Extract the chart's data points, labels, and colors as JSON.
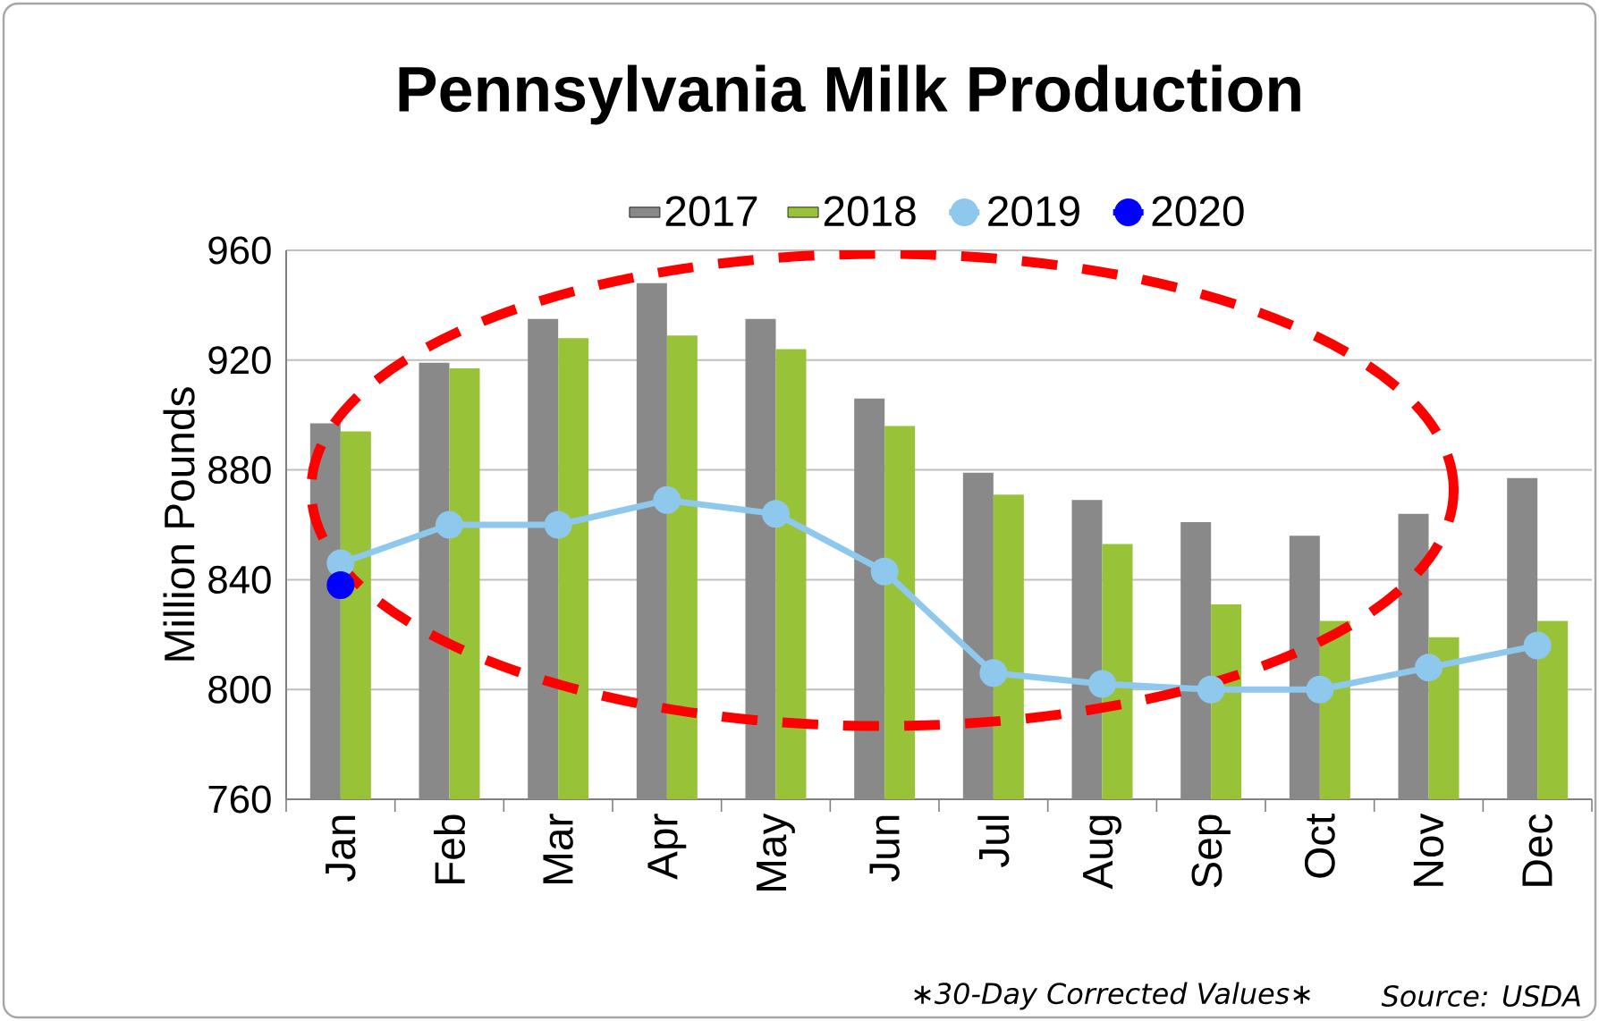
{
  "chart_data": {
    "type": "bar",
    "title": "Pennsylvania Milk Production",
    "ylabel": "Million Pounds",
    "categories": [
      "Jan",
      "Feb",
      "Mar",
      "Apr",
      "May",
      "Jun",
      "Jul",
      "Aug",
      "Sep",
      "Oct",
      "Nov",
      "Dec"
    ],
    "series": [
      {
        "name": "2017",
        "color": "#898989",
        "values": [
          897,
          919,
          935,
          948,
          935,
          906,
          879,
          869,
          861,
          856,
          864,
          877
        ]
      },
      {
        "name": "2018",
        "color": "#98c237",
        "values": [
          894,
          917,
          928,
          929,
          924,
          896,
          871,
          853,
          831,
          825,
          819,
          825
        ]
      },
      {
        "name": "2019",
        "type": "line",
        "color": "#8ec8ec",
        "values": [
          846,
          860,
          860,
          869,
          864,
          843,
          806,
          802,
          800,
          800,
          808,
          816
        ]
      },
      {
        "name": "2020",
        "type": "line",
        "color": "#0000ff",
        "values": [
          838,
          null,
          null,
          null,
          null,
          null,
          null,
          null,
          null,
          null,
          null,
          null
        ]
      }
    ],
    "ylim": [
      760,
      960
    ],
    "yticks": [
      760,
      800,
      840,
      880,
      920,
      960
    ],
    "grid": "y",
    "legend": "top",
    "marker": "circle",
    "annotations": [
      "∗30-Day Corrected Values∗",
      "Source: USDA"
    ]
  }
}
